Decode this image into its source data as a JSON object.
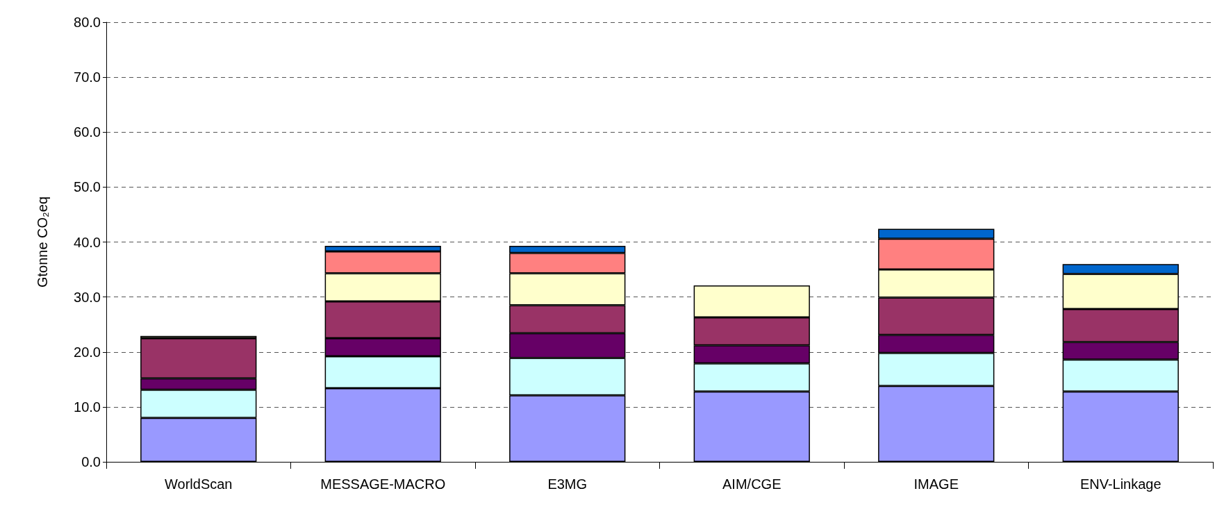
{
  "chart_data": {
    "type": "bar",
    "stacked": true,
    "ylabel": "Gtonne CO₂eq",
    "categories": [
      "WorldScan",
      "MESSAGE-MACRO",
      "E3MG",
      "AIM/CGE",
      "IMAGE",
      "ENV-Linkage"
    ],
    "series": [
      {
        "color": "#9999ff",
        "values": [
          8.0,
          13.4,
          12.1,
          12.8,
          13.8,
          12.8
        ]
      },
      {
        "color": "#ccffff",
        "values": [
          5.1,
          5.8,
          6.8,
          5.1,
          6.0,
          5.8
        ]
      },
      {
        "color": "#660066",
        "values": [
          2.1,
          3.3,
          4.5,
          3.3,
          3.3,
          3.2
        ]
      },
      {
        "color": "#993366",
        "values": [
          7.3,
          6.7,
          5.1,
          5.1,
          6.8,
          6.0
        ]
      },
      {
        "color": "#ffffcc",
        "values": [
          0.4,
          5.1,
          5.8,
          5.8,
          5.1,
          6.4
        ]
      },
      {
        "color": "#ff8080",
        "values": [
          null,
          4.0,
          3.7,
          null,
          5.6,
          null
        ]
      },
      {
        "color": "#0066cc",
        "values": [
          null,
          1.0,
          1.3,
          null,
          1.8,
          1.8
        ]
      }
    ],
    "ylim": [
      0,
      80
    ],
    "yticks": [
      {
        "value": 0,
        "label": "0.0"
      },
      {
        "value": 10,
        "label": "10.0"
      },
      {
        "value": 20,
        "label": "20.0"
      },
      {
        "value": 30,
        "label": "30.0"
      },
      {
        "value": 40,
        "label": "40.0"
      },
      {
        "value": 50,
        "label": "50.0"
      },
      {
        "value": 60,
        "label": "60.0"
      },
      {
        "value": 70,
        "label": "70.0"
      },
      {
        "value": 80,
        "label": "80.0"
      }
    ],
    "grid": "y"
  }
}
